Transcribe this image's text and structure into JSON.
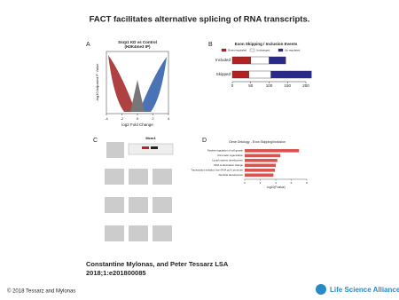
{
  "header": {
    "title": "FACT facilitates alternative splicing of RNA transcripts."
  },
  "panels": {
    "a": {
      "label": "A",
      "title": "Ssrp1 KD vs Control",
      "subtitle": "(H3K4me3 IP)",
      "ylabel": "-log10 Adjusted P. Value",
      "xlabel": "log2 Fold Change",
      "xlim": [
        -4,
        4
      ],
      "xticks": [
        -4,
        -2,
        0,
        2,
        4
      ]
    },
    "b": {
      "label": "B",
      "title": "Exon Skipping / Inclusion Events",
      "categories": [
        "Included",
        "Skipped"
      ],
      "series": [
        {
          "name": "Down-regulated",
          "color": "#b22222",
          "values": [
            50,
            45
          ]
        },
        {
          "name": "Unchanged",
          "color": "#ffffff",
          "values": [
            50,
            60
          ]
        },
        {
          "name": "Up-regulated",
          "color": "#2a2a8a",
          "values": [
            45,
            110
          ]
        }
      ],
      "xlim": [
        0,
        200
      ],
      "xticks": [
        0,
        50,
        100,
        150,
        200
      ]
    },
    "c": {
      "label": "C",
      "title": "Mcm1"
    },
    "d": {
      "label": "D",
      "title": "Gene Ontology - Exon Skipping/Inclusion",
      "xlabel": "-log10(P.value)",
      "categories": [
        "Positive regulation of cell growth",
        "Chromatin organization",
        "Lymph system development",
        "DNA conformation change",
        "Transcription initiation from RNA pol II promoter",
        "Dendrite development"
      ],
      "values": [
        7,
        4.6,
        4.2,
        4,
        3.9,
        3.7
      ],
      "color": "#d9534f",
      "xlim": [
        0,
        8
      ],
      "xticks": [
        0,
        2,
        4,
        6,
        8
      ]
    }
  },
  "caption": {
    "authors": "Constantine Mylonas, and Peter Tessarz LSA",
    "citation": "2018;1:e201800085"
  },
  "footer": {
    "copyright": "© 2018 Tessarz and Mylonas",
    "logo": "Life Science Alliance"
  }
}
